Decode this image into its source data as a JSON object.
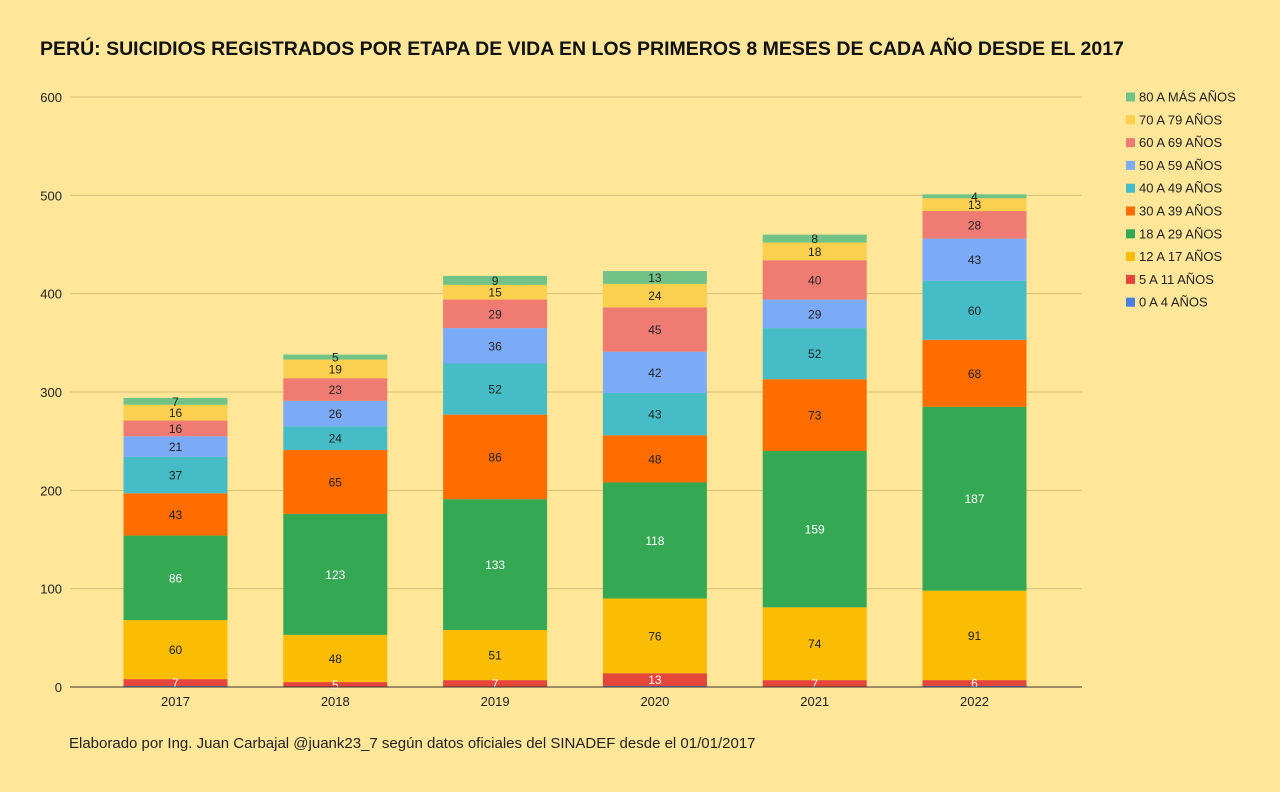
{
  "chart_data": {
    "type": "bar",
    "stacked": true,
    "title": "PERÚ: SUICIDIOS REGISTRADOS POR ETAPA DE VIDA EN LOS PRIMEROS 8 MESES DE CADA AÑO DESDE EL 2017",
    "xlabel": "",
    "ylabel": "",
    "ylim": [
      0,
      600
    ],
    "yticks": [
      0,
      100,
      200,
      300,
      400,
      500,
      600
    ],
    "grid": true,
    "legend_position": "right",
    "categories": [
      "2017",
      "2018",
      "2019",
      "2020",
      "2021",
      "2022"
    ],
    "series": [
      {
        "name": "0 A 4 AÑOS",
        "color": "#4a7fe0",
        "label_color": "#ffffff",
        "values": [
          1,
          0,
          0,
          1,
          0,
          1
        ]
      },
      {
        "name": "5 A 11 AÑOS",
        "color": "#e6463a",
        "label_color": "#ffffff",
        "values": [
          7,
          5,
          7,
          13,
          7,
          6
        ]
      },
      {
        "name": "12 A 17 AÑOS",
        "color": "#fbbc04",
        "label_color": "#222222",
        "values": [
          60,
          48,
          51,
          76,
          74,
          91
        ]
      },
      {
        "name": "18 A 29 AÑOS",
        "color": "#34a853",
        "label_color": "#ffffff",
        "values": [
          86,
          123,
          133,
          118,
          159,
          187
        ]
      },
      {
        "name": "30 A 39 AÑOS",
        "color": "#ff6d01",
        "label_color": "#222222",
        "values": [
          43,
          65,
          86,
          48,
          73,
          68
        ]
      },
      {
        "name": "40 A 49 AÑOS",
        "color": "#46bdc6",
        "label_color": "#222222",
        "values": [
          37,
          24,
          52,
          43,
          52,
          60
        ]
      },
      {
        "name": "50 A 59 AÑOS",
        "color": "#7baaf7",
        "label_color": "#222222",
        "values": [
          21,
          26,
          36,
          42,
          29,
          43
        ]
      },
      {
        "name": "60 A 69 AÑOS",
        "color": "#f07b72",
        "label_color": "#222222",
        "values": [
          16,
          23,
          29,
          45,
          40,
          28
        ]
      },
      {
        "name": "70 A 79 AÑOS",
        "color": "#fcd04f",
        "label_color": "#222222",
        "values": [
          16,
          19,
          15,
          24,
          18,
          13
        ]
      },
      {
        "name": "80 A MÁS AÑOS",
        "color": "#71c287",
        "label_color": "#222222",
        "values": [
          7,
          5,
          9,
          13,
          8,
          4
        ]
      }
    ],
    "data_labels": {
      "0 A 4 AÑOS": [
        "",
        "",
        "",
        "",
        "",
        ""
      ],
      "5 A 11 AÑOS": [
        "7",
        "5",
        "7",
        "13",
        "7",
        "6"
      ]
    }
  },
  "footer": {
    "note": "Elaborado por Ing. Juan Carbajal @juank23_7 según datos oficiales del SINADEF desde el 01/01/2017"
  }
}
